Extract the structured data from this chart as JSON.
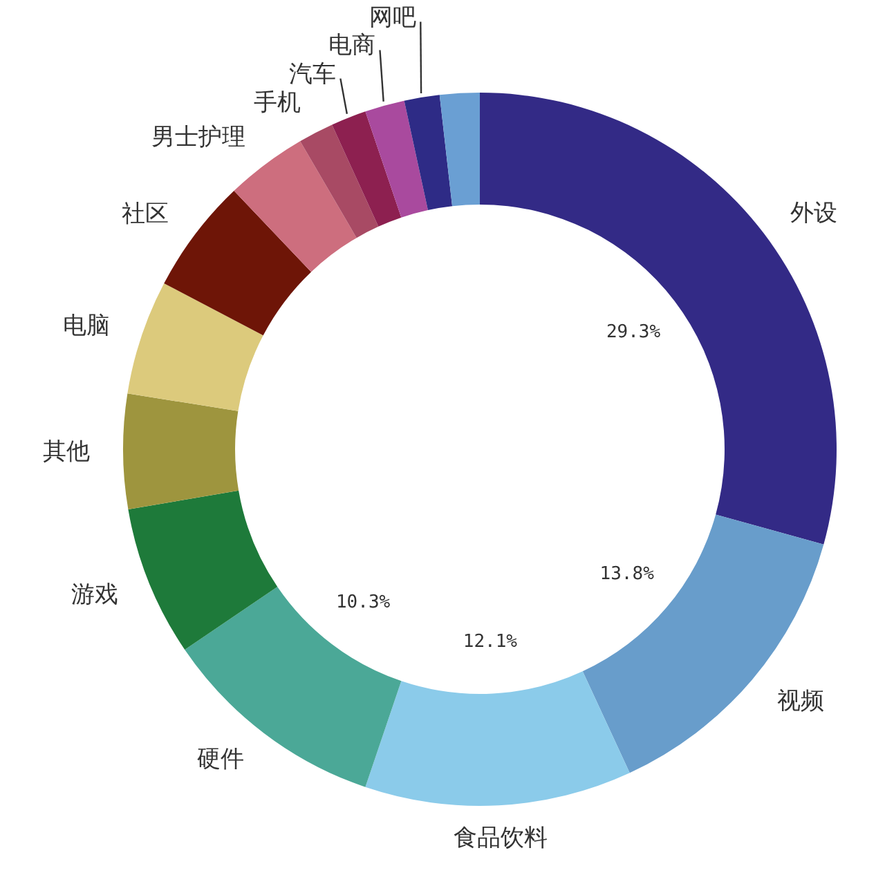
{
  "chart_data": {
    "type": "donut",
    "categories": [
      "外设",
      "视频",
      "食品饮料",
      "硬件",
      "游戏",
      "其他",
      "电脑",
      "社区",
      "男士护理",
      "手机",
      "汽车",
      "电商",
      "网吧",
      null
    ],
    "values": [
      29.3,
      13.8,
      12.1,
      10.3,
      6.8,
      5.2,
      5.2,
      5.2,
      3.7,
      1.6,
      1.6,
      1.8,
      1.6,
      1.8
    ],
    "colors": [
      "#332a86",
      "#689dcb",
      "#8bcbea",
      "#4ba897",
      "#1e7a3a",
      "#9e953e",
      "#dcca7c",
      "#6e1507",
      "#cd6e7e",
      "#a84a64",
      "#8d2050",
      "#a94a9e",
      "#2e2b86",
      "#6a9fd3"
    ],
    "value_labels": [
      "29.3%",
      "13.8%",
      "12.1%",
      "10.3%",
      null,
      null,
      null,
      null,
      null,
      null,
      null,
      null,
      null,
      null
    ]
  }
}
